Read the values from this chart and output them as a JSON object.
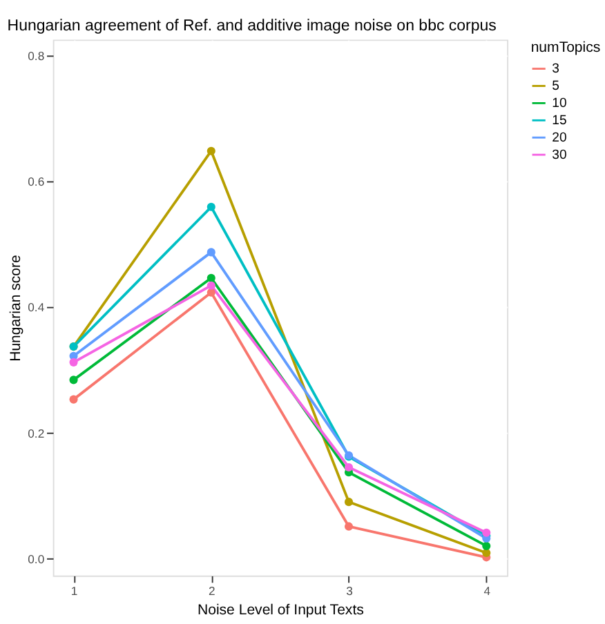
{
  "chart_data": {
    "type": "line",
    "title": "Hungarian agreement of Ref. and additive image noise on bbc corpus",
    "xlabel": "Noise Level of Input Texts",
    "ylabel": "Hungarian score",
    "legend_title": "numTopics",
    "x": [
      1,
      2,
      3,
      4
    ],
    "xlim": [
      0.85,
      4.15
    ],
    "xticks": [
      1,
      2,
      3,
      4
    ],
    "ylim": [
      -0.027,
      0.825
    ],
    "yticks": [
      {
        "value": 0,
        "label": "0.0"
      },
      0.2,
      0.4,
      0.6,
      0.8
    ],
    "grid": true,
    "legend": "right",
    "marker": "circle",
    "line_style": "solid",
    "series": [
      {
        "name": "3",
        "color": "#f8766d",
        "values": [
          0.253,
          0.423,
          0.051,
          0.002
        ]
      },
      {
        "name": "5",
        "color": "#b79f00",
        "values": [
          0.337,
          0.648,
          0.09,
          0.009
        ]
      },
      {
        "name": "10",
        "color": "#00ba38",
        "values": [
          0.284,
          0.446,
          0.137,
          0.02
        ]
      },
      {
        "name": "15",
        "color": "#00bfc4",
        "values": [
          0.337,
          0.559,
          0.162,
          0.036
        ]
      },
      {
        "name": "20",
        "color": "#619cff",
        "values": [
          0.322,
          0.487,
          0.164,
          0.032
        ]
      },
      {
        "name": "30",
        "color": "#f564e3",
        "values": [
          0.312,
          0.434,
          0.145,
          0.041
        ]
      }
    ]
  }
}
